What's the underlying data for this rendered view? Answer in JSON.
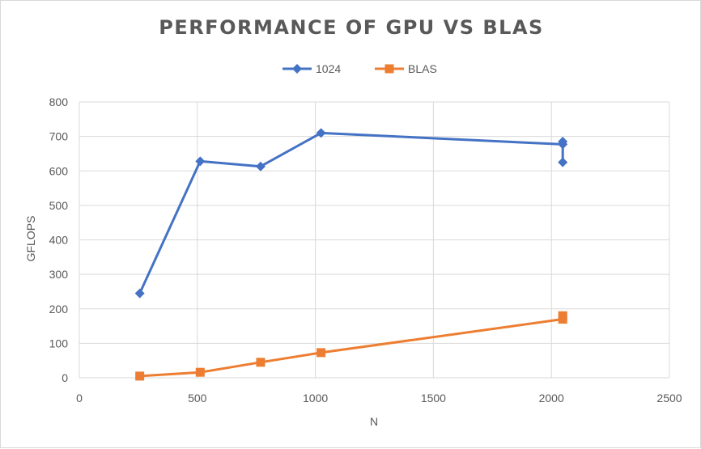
{
  "chart_data": {
    "type": "scatter",
    "title": "PERFORMANCE OF GPU VS BLAS",
    "xlabel": "N",
    "ylabel": "GFLOPS",
    "xlim": [
      0,
      2500
    ],
    "ylim": [
      0,
      800
    ],
    "x_ticks": [
      0,
      500,
      1000,
      1500,
      2000,
      2500
    ],
    "y_ticks": [
      0,
      100,
      200,
      300,
      400,
      500,
      600,
      700,
      800
    ],
    "grid": true,
    "legend_position": "top",
    "series": [
      {
        "name": "1024",
        "color": "#4472c4",
        "marker": "diamond",
        "x": [
          256,
          512,
          768,
          1024,
          2048,
          2048,
          2048
        ],
        "y": [
          245,
          628,
          613,
          710,
          677,
          685,
          625
        ]
      },
      {
        "name": "BLAS",
        "color": "#ed7d31",
        "marker": "square",
        "x": [
          256,
          512,
          768,
          1024,
          2048,
          2048
        ],
        "y": [
          5,
          16,
          45,
          73,
          170,
          180
        ]
      }
    ]
  }
}
